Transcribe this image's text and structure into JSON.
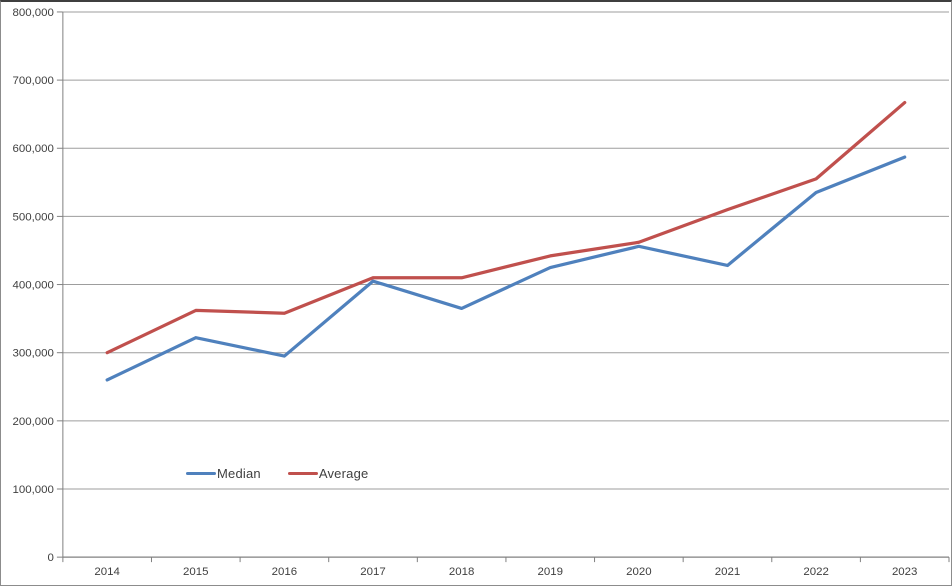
{
  "chart_data": {
    "type": "line",
    "title": "",
    "categories": [
      "2014",
      "2015",
      "2016",
      "2017",
      "2018",
      "2019",
      "2020",
      "2021",
      "2022",
      "2023"
    ],
    "series": [
      {
        "name": "Median",
        "color": "#4F81BD",
        "values": [
          260000,
          322000,
          295000,
          405000,
          365000,
          425000,
          456000,
          428000,
          535000,
          587000
        ]
      },
      {
        "name": "Average",
        "color": "#C0504D",
        "values": [
          300000,
          362000,
          358000,
          410000,
          410000,
          442000,
          462000,
          510000,
          555000,
          667000
        ]
      }
    ],
    "xlabel": "",
    "ylabel": "",
    "ylim": [
      0,
      800000
    ],
    "ytick_labels": [
      "0",
      "100,000",
      "200,000",
      "300,000",
      "400,000",
      "500,000",
      "600,000",
      "700,000",
      "800,000"
    ],
    "grid": true,
    "legend_position": "inside-lower-left"
  },
  "colors": {
    "gridline": "#9d9d9d",
    "axis": "#808080",
    "text": "#404040",
    "background": "#ffffff",
    "border": "#8c8c8c"
  }
}
